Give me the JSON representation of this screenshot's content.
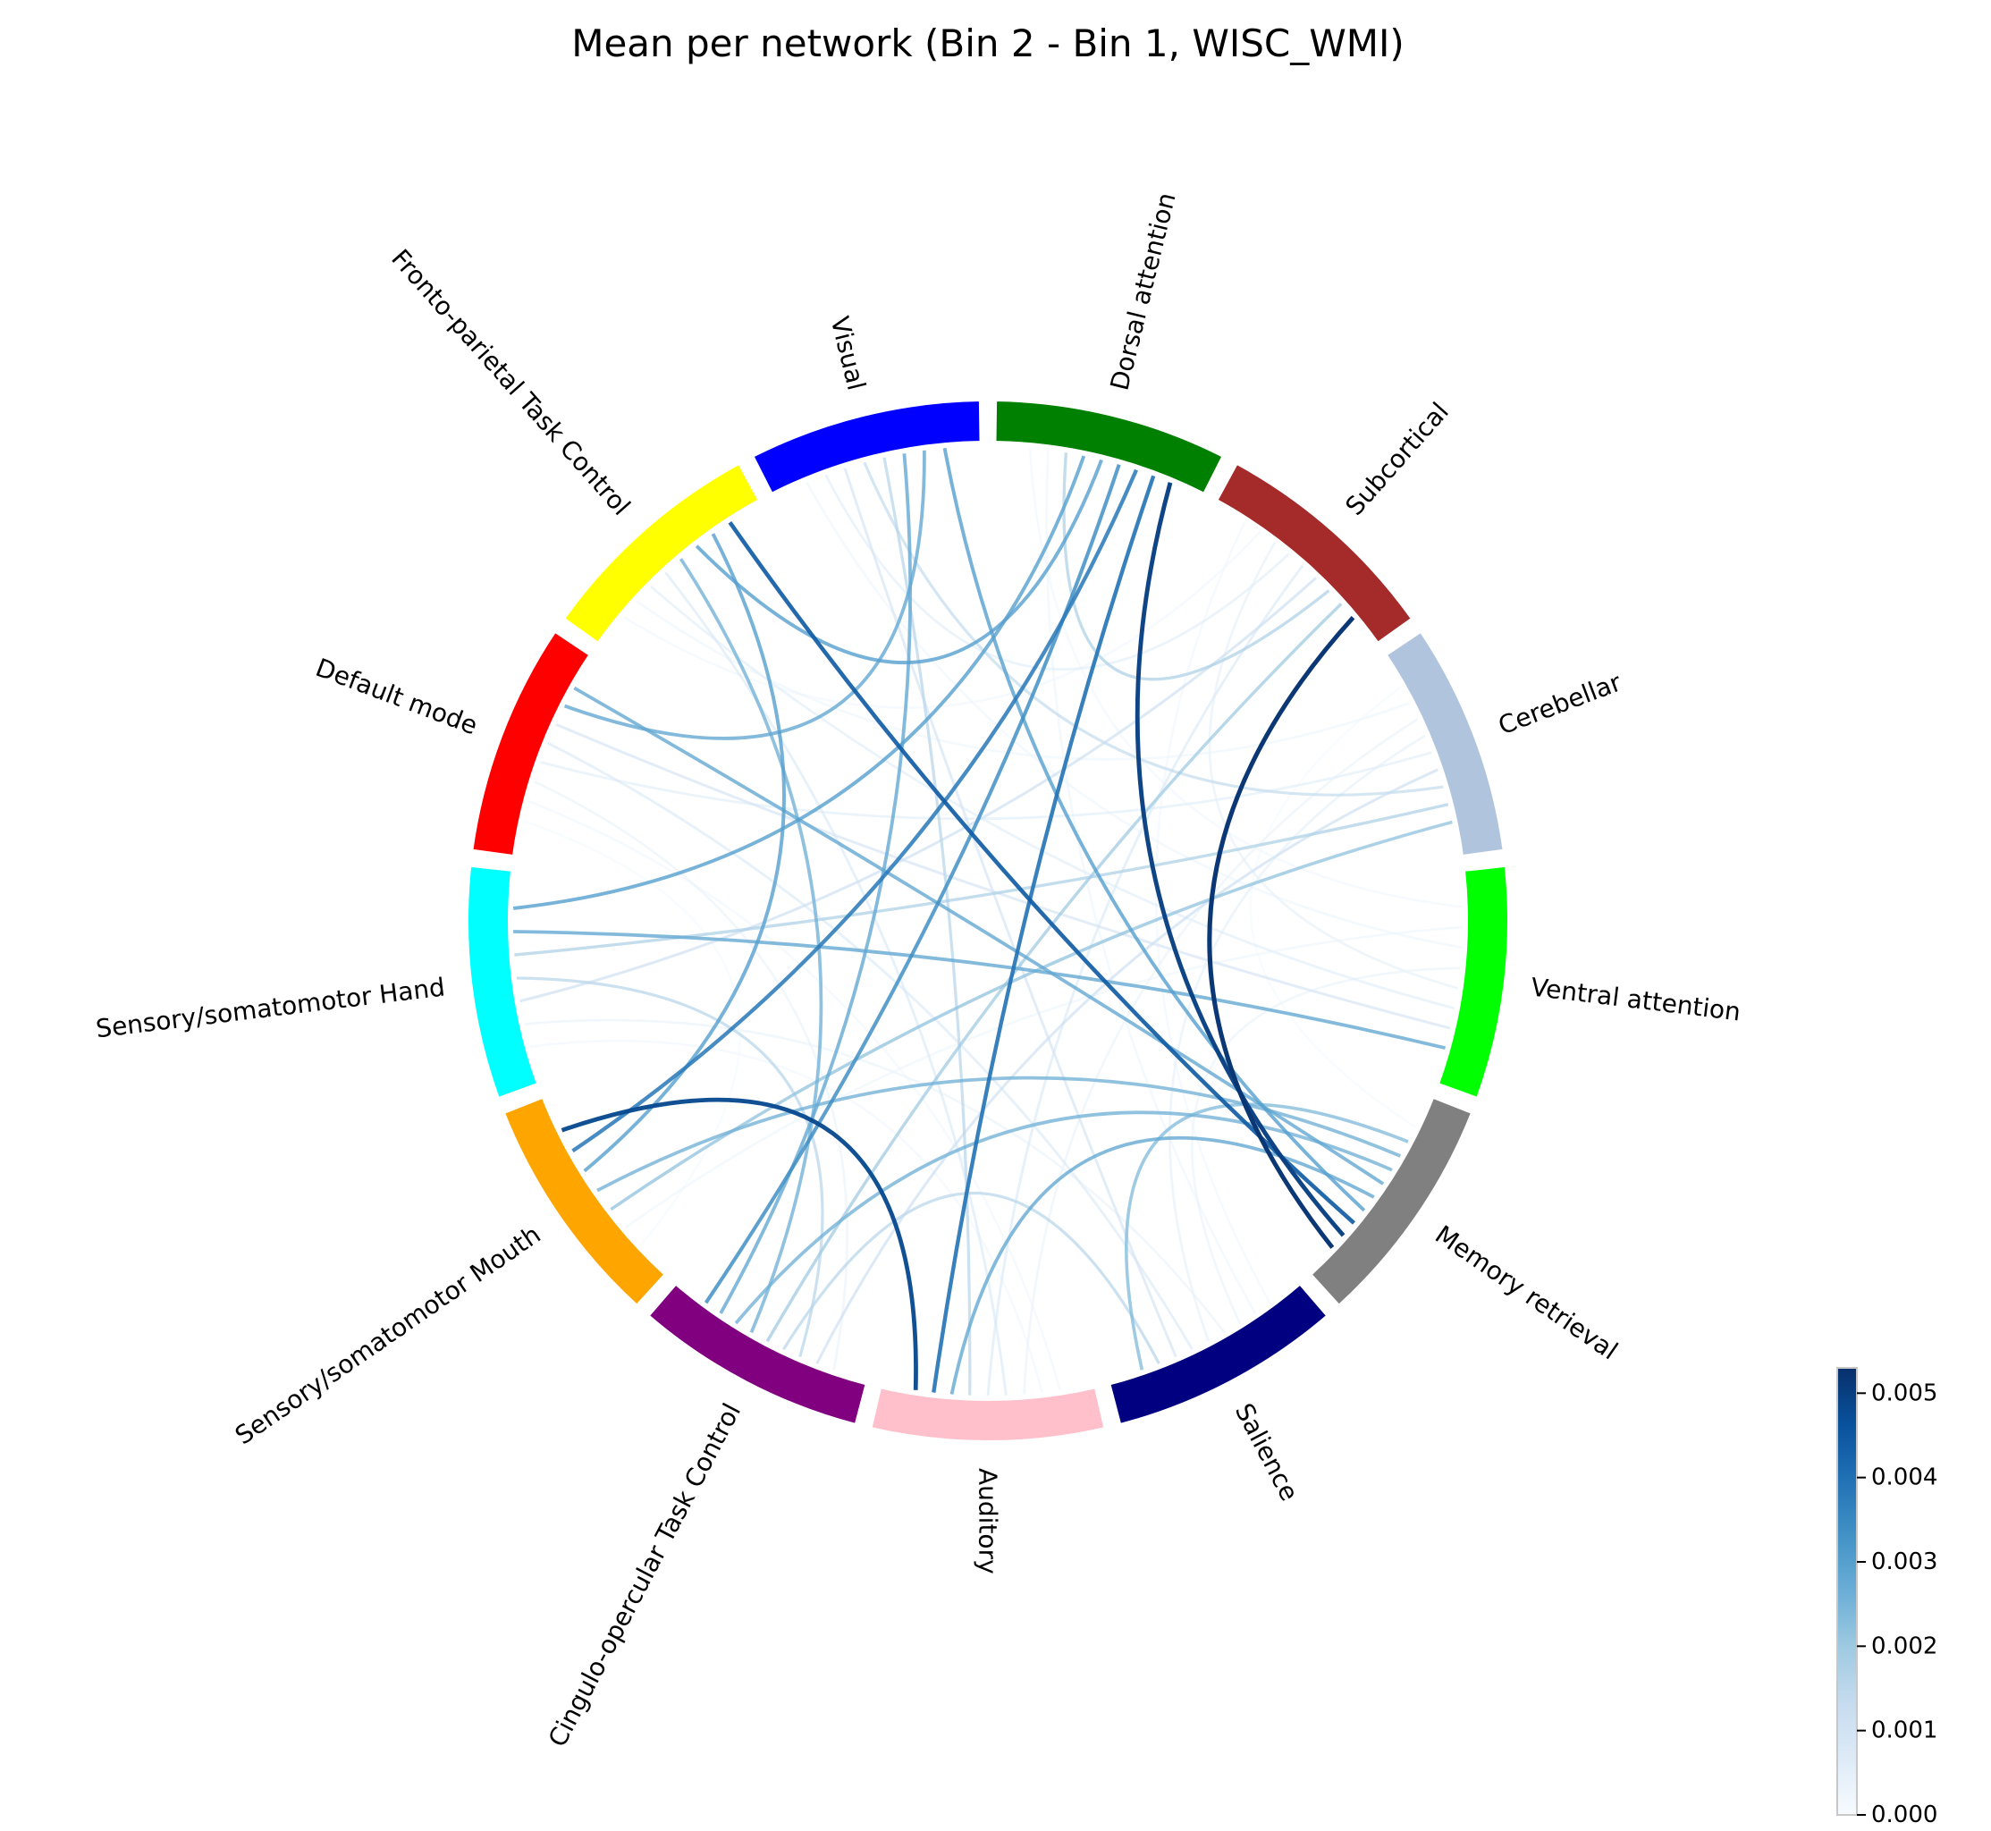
{
  "chart_data": {
    "type": "chord",
    "title": "Mean per network (Bin 2 - Bin 1, WISC_WMI)",
    "networks": [
      {
        "name": "Dorsal attention",
        "color": "#008000"
      },
      {
        "name": "Subcortical",
        "color": "#A52A2A"
      },
      {
        "name": "Cerebellar",
        "color": "#B0C4DE"
      },
      {
        "name": "Ventral attention",
        "color": "#00FF00"
      },
      {
        "name": "Memory retrieval",
        "color": "#808080"
      },
      {
        "name": "Salience",
        "color": "#000080"
      },
      {
        "name": "Auditory",
        "color": "#FFC0CB"
      },
      {
        "name": "Cingulo-opercular Task Control",
        "color": "#800080"
      },
      {
        "name": "Sensory/somatomotor Mouth",
        "color": "#FFA500"
      },
      {
        "name": "Sensory/somatomotor Hand",
        "color": "#00FFFF"
      },
      {
        "name": "Default mode",
        "color": "#FF0000"
      },
      {
        "name": "Fronto-parietal Task Control",
        "color": "#FFFF00"
      },
      {
        "name": "Visual",
        "color": "#0000FF"
      }
    ],
    "links": [
      {
        "source": "Fronto-parietal Task Control",
        "target": "Memory retrieval",
        "value": 0.0044
      },
      {
        "source": "Subcortical",
        "target": "Memory retrieval",
        "value": 0.0052
      },
      {
        "source": "Dorsal attention",
        "target": "Memory retrieval",
        "value": 0.005
      },
      {
        "source": "Sensory/somatomotor Mouth",
        "target": "Auditory",
        "value": 0.0048
      },
      {
        "source": "Dorsal attention",
        "target": "Auditory",
        "value": 0.004
      },
      {
        "source": "Dorsal attention",
        "target": "Sensory/somatomotor Mouth",
        "value": 0.0038
      },
      {
        "source": "Dorsal attention",
        "target": "Cingulo-opercular Task Control",
        "value": 0.0034
      },
      {
        "source": "Dorsal attention",
        "target": "Sensory/somatomotor Hand",
        "value": 0.003
      },
      {
        "source": "Dorsal attention",
        "target": "Fronto-parietal Task Control",
        "value": 0.003
      },
      {
        "source": "Visual",
        "target": "Memory retrieval",
        "value": 0.003
      },
      {
        "source": "Visual",
        "target": "Cingulo-opercular Task Control",
        "value": 0.0028
      },
      {
        "source": "Visual",
        "target": "Default mode",
        "value": 0.0028
      },
      {
        "source": "Fronto-parietal Task Control",
        "target": "Sensory/somatomotor Mouth",
        "value": 0.003
      },
      {
        "source": "Fronto-parietal Task Control",
        "target": "Cingulo-opercular Task Control",
        "value": 0.0026
      },
      {
        "source": "Default mode",
        "target": "Memory retrieval",
        "value": 0.0028
      },
      {
        "source": "Sensory/somatomotor Mouth",
        "target": "Memory retrieval",
        "value": 0.0026
      },
      {
        "source": "Sensory/somatomotor Hand",
        "target": "Ventral attention",
        "value": 0.0028
      },
      {
        "source": "Auditory",
        "target": "Memory retrieval",
        "value": 0.0028
      },
      {
        "source": "Cingulo-opercular Task Control",
        "target": "Memory retrieval",
        "value": 0.0026
      },
      {
        "source": "Salience",
        "target": "Memory retrieval",
        "value": 0.0024
      },
      {
        "source": "Sensory/somatomotor Mouth",
        "target": "Cerebellar",
        "value": 0.0022
      },
      {
        "source": "Cingulo-opercular Task Control",
        "target": "Subcortical",
        "value": 0.002
      },
      {
        "source": "Dorsal attention",
        "target": "Subcortical",
        "value": 0.0018
      },
      {
        "source": "Sensory/somatomotor Hand",
        "target": "Cerebellar",
        "value": 0.0018
      },
      {
        "source": "Sensory/somatomotor Hand",
        "target": "Cingulo-opercular Task Control",
        "value": 0.0016
      },
      {
        "source": "Visual",
        "target": "Auditory",
        "value": 0.0016
      },
      {
        "source": "Cingulo-opercular Task Control",
        "target": "Salience",
        "value": 0.0016
      },
      {
        "source": "Visual",
        "target": "Cerebellar",
        "value": 0.0014
      },
      {
        "source": "Cingulo-opercular Task Control",
        "target": "Cerebellar",
        "value": 0.0012
      },
      {
        "source": "Sensory/somatomotor Hand",
        "target": "Subcortical",
        "value": 0.0012
      },
      {
        "source": "Visual",
        "target": "Salience",
        "value": 0.001
      },
      {
        "source": "Default mode",
        "target": "Ventral attention",
        "value": 0.001
      },
      {
        "source": "Fronto-parietal Task Control",
        "target": "Auditory",
        "value": 0.0008
      },
      {
        "source": "Default mode",
        "target": "Salience",
        "value": 0.0008
      },
      {
        "source": "Subcortical",
        "target": "Auditory",
        "value": 0.0008
      },
      {
        "source": "Fronto-parietal Task Control",
        "target": "Ventral attention",
        "value": 0.0006
      },
      {
        "source": "Visual",
        "target": "Subcortical",
        "value": 0.0006
      },
      {
        "source": "Default mode",
        "target": "Cerebellar",
        "value": 0.0006
      },
      {
        "source": "Subcortical",
        "target": "Ventral attention",
        "value": 0.0005
      },
      {
        "source": "Cerebellar",
        "target": "Salience",
        "value": 0.0005
      },
      {
        "source": "Ventral attention",
        "target": "Salience",
        "value": 0.0004
      },
      {
        "source": "Sensory/somatomotor Hand",
        "target": "Salience",
        "value": 0.0004
      },
      {
        "source": "Default mode",
        "target": "Cingulo-opercular Task Control",
        "value": 0.0004
      },
      {
        "source": "Cerebellar",
        "target": "Auditory",
        "value": 0.0004
      },
      {
        "source": "Sensory/somatomotor Mouth",
        "target": "Ventral attention",
        "value": 0.0003
      },
      {
        "source": "Fronto-parietal Task Control",
        "target": "Cerebellar",
        "value": 0.0003
      },
      {
        "source": "Visual",
        "target": "Ventral attention",
        "value": 0.0003
      },
      {
        "source": "Dorsal attention",
        "target": "Salience",
        "value": 0.0003
      },
      {
        "source": "Default mode",
        "target": "Auditory",
        "value": 0.0002
      },
      {
        "source": "Subcortical",
        "target": "Salience",
        "value": 0.0002
      },
      {
        "source": "Sensory/somatomotor Hand",
        "target": "Auditory",
        "value": 0.0002
      },
      {
        "source": "Dorsal attention",
        "target": "Ventral attention",
        "value": 0.0002
      },
      {
        "source": "Fronto-parietal Task Control",
        "target": "Subcortical",
        "value": 0.0002
      },
      {
        "source": "Default mode",
        "target": "Sensory/somatomotor Mouth",
        "value": 0.0001
      },
      {
        "source": "Cerebellar",
        "target": "Memory retrieval",
        "value": 0.0001
      }
    ],
    "colorbar": {
      "cmap": "Blues",
      "min": 0.0,
      "max": 0.0053,
      "ticks": [
        "0.000",
        "0.001",
        "0.002",
        "0.003",
        "0.004",
        "0.005"
      ],
      "tick_values": [
        0.0,
        0.001,
        0.002,
        0.003,
        0.004,
        0.005
      ]
    }
  }
}
